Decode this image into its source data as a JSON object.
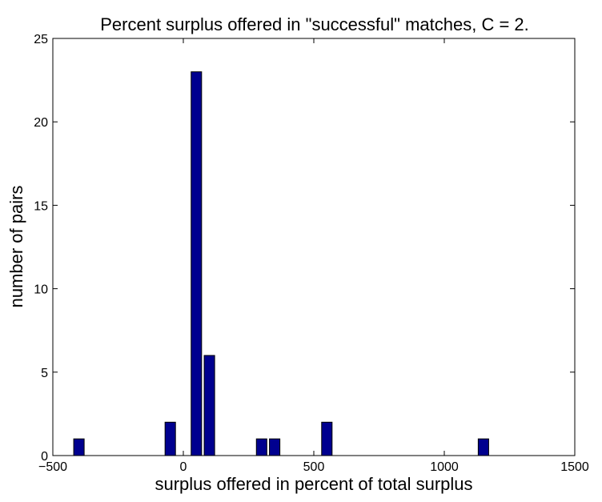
{
  "chart_data": {
    "type": "bar",
    "title": "Percent surplus offered in \"successful\" matches, C = 2.",
    "xlabel": "surplus offered in percent of total surplus",
    "ylabel": "number of pairs",
    "xlim": [
      -500,
      1500
    ],
    "ylim": [
      0,
      25
    ],
    "xticks": [
      -500,
      0,
      500,
      1000,
      1500
    ],
    "xtick_labels": [
      "−500",
      "0",
      "500",
      "1000",
      "1500"
    ],
    "yticks": [
      0,
      5,
      10,
      15,
      20,
      25
    ],
    "ytick_labels": [
      "0",
      "5",
      "10",
      "15",
      "20",
      "25"
    ],
    "bar_width": 40,
    "x": [
      -400,
      -50,
      50,
      100,
      300,
      350,
      550,
      1150
    ],
    "values": [
      1,
      2,
      23,
      6,
      1,
      1,
      2,
      1
    ],
    "bar_color": "#00008f",
    "grid": false
  }
}
